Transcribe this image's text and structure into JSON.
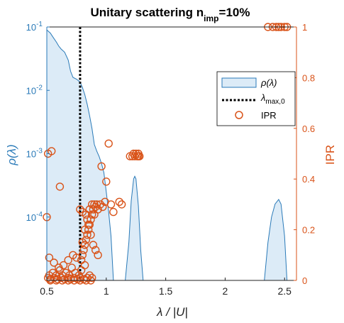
{
  "chart_data": {
    "type": "area",
    "title": "Unitary scattering n_imp=10%",
    "title_main": "Unitary scattering n",
    "title_sub": "imp",
    "title_tail": "=10%",
    "xlabel": "λ / |U|",
    "ylabel_left": "ρ(λ)",
    "ylabel_right": "IPR",
    "xlim": [
      0.5,
      2.6
    ],
    "ylim_left": [
      1e-05,
      0.1
    ],
    "ylim_right": [
      0,
      1
    ],
    "left_scale": "log",
    "x_ticks": [
      "0.5",
      "1",
      "1.5",
      "2",
      "2.5"
    ],
    "x_tick_values": [
      0.5,
      1,
      1.5,
      2,
      2.5
    ],
    "left_ticks": [
      {
        "base": "10",
        "exp": "-1",
        "value": 0.1
      },
      {
        "base": "10",
        "exp": "-2",
        "value": 0.01
      },
      {
        "base": "10",
        "exp": "-3",
        "value": 0.001
      },
      {
        "base": "10",
        "exp": "-4",
        "value": 0.0001
      }
    ],
    "right_ticks": [
      "0",
      "0.2",
      "0.4",
      "0.6",
      "0.8",
      "1"
    ],
    "right_tick_values": [
      0,
      0.2,
      0.4,
      0.6,
      0.8,
      1
    ],
    "colors": {
      "density": "#2a7ab8",
      "density_fill": "#dcebf7",
      "ipr": "#d95319",
      "lambda": "#000000"
    },
    "legend": {
      "placement": "top-right",
      "density_label": "ρ(λ)",
      "lambda_label": "λ",
      "lambda_sub": "max,0",
      "ipr_label": "IPR"
    },
    "lambda_max_0": 0.78,
    "density_segments": [
      {
        "points": [
          [
            0.5,
            0.09
          ],
          [
            0.53,
            0.08
          ],
          [
            0.55,
            0.07
          ],
          [
            0.58,
            0.058
          ],
          [
            0.6,
            0.05
          ],
          [
            0.62,
            0.045
          ],
          [
            0.65,
            0.04
          ],
          [
            0.68,
            0.03
          ],
          [
            0.7,
            0.02
          ],
          [
            0.72,
            0.016
          ],
          [
            0.75,
            0.015
          ],
          [
            0.78,
            0.0135
          ],
          [
            0.8,
            0.011
          ],
          [
            0.82,
            0.0085
          ],
          [
            0.84,
            0.006
          ],
          [
            0.86,
            0.004
          ],
          [
            0.88,
            0.0025
          ],
          [
            0.9,
            0.0014
          ],
          [
            0.92,
            0.0011
          ],
          [
            0.94,
            0.0009
          ],
          [
            0.96,
            0.0007
          ],
          [
            0.98,
            0.0005
          ],
          [
            1.0,
            0.00025
          ],
          [
            1.02,
            0.00012
          ],
          [
            1.04,
            5e-05
          ],
          [
            1.06,
            1e-05
          ]
        ]
      },
      {
        "points": [
          [
            1.16,
            1e-05
          ],
          [
            1.19,
            4e-05
          ],
          [
            1.21,
            0.00018
          ],
          [
            1.23,
            0.0004
          ],
          [
            1.24,
            0.00044
          ],
          [
            1.25,
            0.0004
          ],
          [
            1.27,
            0.00015
          ],
          [
            1.29,
            3e-05
          ],
          [
            1.31,
            1e-05
          ]
        ]
      },
      {
        "points": [
          [
            2.33,
            1e-05
          ],
          [
            2.36,
            4e-05
          ],
          [
            2.39,
            0.0001
          ],
          [
            2.42,
            0.00016
          ],
          [
            2.45,
            0.00019
          ],
          [
            2.47,
            0.00016
          ],
          [
            2.5,
            5e-05
          ],
          [
            2.52,
            1e-05
          ]
        ]
      }
    ],
    "ipr_points": [
      [
        0.51,
        0.5
      ],
      [
        0.54,
        0.51
      ],
      [
        0.5,
        0.25
      ],
      [
        0.61,
        0.37
      ],
      [
        0.52,
        0.09
      ],
      [
        0.56,
        0.07
      ],
      [
        0.6,
        0.05
      ],
      [
        0.64,
        0.06
      ],
      [
        0.68,
        0.08
      ],
      [
        0.72,
        0.1
      ],
      [
        0.75,
        0.09
      ],
      [
        0.52,
        0.02
      ],
      [
        0.55,
        0.03
      ],
      [
        0.58,
        0.02
      ],
      [
        0.61,
        0.04
      ],
      [
        0.63,
        0.02
      ],
      [
        0.66,
        0.03
      ],
      [
        0.69,
        0.02
      ],
      [
        0.71,
        0.05
      ],
      [
        0.74,
        0.03
      ],
      [
        0.77,
        0.02
      ],
      [
        0.79,
        0.04
      ],
      [
        0.82,
        0.06
      ],
      [
        0.51,
        0.01
      ],
      [
        0.53,
        0.005
      ],
      [
        0.56,
        0.01
      ],
      [
        0.59,
        0.005
      ],
      [
        0.62,
        0.01
      ],
      [
        0.65,
        0.005
      ],
      [
        0.68,
        0.01
      ],
      [
        0.7,
        0.005
      ],
      [
        0.73,
        0.01
      ],
      [
        0.76,
        0.005
      ],
      [
        0.78,
        0.01
      ],
      [
        0.81,
        0.005
      ],
      [
        0.84,
        0.01
      ],
      [
        0.86,
        0.02
      ],
      [
        0.88,
        0.01
      ],
      [
        0.79,
        0.08
      ],
      [
        0.8,
        0.1
      ],
      [
        0.81,
        0.12
      ],
      [
        0.82,
        0.14
      ],
      [
        0.83,
        0.16
      ],
      [
        0.84,
        0.18
      ],
      [
        0.85,
        0.2
      ],
      [
        0.86,
        0.22
      ],
      [
        0.87,
        0.24
      ],
      [
        0.88,
        0.26
      ],
      [
        0.89,
        0.28
      ],
      [
        0.9,
        0.3
      ],
      [
        0.91,
        0.29
      ],
      [
        0.92,
        0.3
      ],
      [
        0.8,
        0.15
      ],
      [
        0.82,
        0.2
      ],
      [
        0.84,
        0.24
      ],
      [
        0.86,
        0.28
      ],
      [
        0.88,
        0.3
      ],
      [
        0.9,
        0.26
      ],
      [
        0.93,
        0.28
      ],
      [
        0.95,
        0.3
      ],
      [
        0.97,
        0.29
      ],
      [
        0.99,
        0.31
      ],
      [
        0.78,
        0.28
      ],
      [
        0.8,
        0.27
      ],
      [
        0.83,
        0.26
      ],
      [
        0.85,
        0.22
      ],
      [
        0.87,
        0.18
      ],
      [
        0.89,
        0.14
      ],
      [
        0.91,
        0.12
      ],
      [
        0.93,
        0.1
      ],
      [
        0.96,
        0.45
      ],
      [
        1.02,
        0.54
      ],
      [
        1.0,
        0.39
      ],
      [
        1.04,
        0.3
      ],
      [
        1.06,
        0.27
      ],
      [
        1.11,
        0.31
      ],
      [
        1.13,
        0.3
      ],
      [
        1.2,
        0.49
      ],
      [
        1.22,
        0.49
      ],
      [
        1.24,
        0.49
      ],
      [
        1.26,
        0.49
      ],
      [
        1.27,
        0.49
      ],
      [
        1.28,
        0.49
      ],
      [
        1.23,
        0.5
      ],
      [
        1.25,
        0.5
      ],
      [
        1.27,
        0.5
      ],
      [
        2.36,
        1.0
      ],
      [
        2.4,
        1.0
      ],
      [
        2.43,
        1.0
      ],
      [
        2.45,
        1.0
      ],
      [
        2.47,
        1.0
      ],
      [
        2.5,
        1.0
      ],
      [
        2.52,
        1.0
      ],
      [
        0.53,
        0.0
      ],
      [
        0.58,
        0.0
      ],
      [
        0.63,
        0.0
      ],
      [
        0.68,
        0.0
      ],
      [
        0.73,
        0.0
      ],
      [
        0.78,
        0.0
      ],
      [
        0.83,
        0.0
      ],
      [
        0.87,
        0.0
      ]
    ]
  }
}
